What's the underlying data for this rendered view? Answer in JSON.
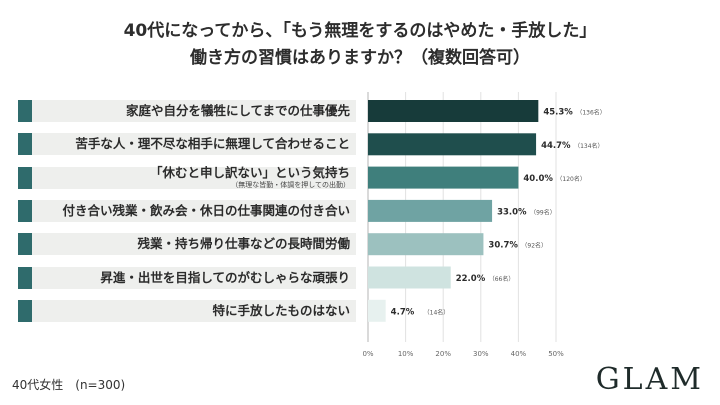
{
  "title_lines": [
    "40代になってから、「もう無理をするのはやめた・手放した」",
    "働き方の習慣はありますか？（複数回答可）"
  ],
  "footer": "40代女性　(n=300)",
  "logo": "GLAM",
  "colors": {
    "marker": "#2f6b6c",
    "label_bg": "#eeefed",
    "bars": [
      "#173b3a",
      "#1f4e4d",
      "#3f7f7c",
      "#6fa3a3",
      "#9cc1bf",
      "#cfe3e0",
      "#e7f1ef"
    ]
  },
  "chart_data": {
    "type": "bar",
    "orientation": "horizontal",
    "categories": [
      "家庭や自分を犠牲にしてまでの仕事優先",
      "苦手な人・理不尽な相手に無理して合わせること",
      "「休むと申し訳ない」という気持ち",
      "付き合い残業・飲み会・休日の仕事関連の付き合い",
      "残業・持ち帰り仕事などの長時間労働",
      "昇進・出世を目指してのがむしゃらな頑張り",
      "特に手放したものはない"
    ],
    "category_notes": [
      "",
      "",
      "（無理な皆勤・体調を押しての出勤）",
      "",
      "",
      "",
      ""
    ],
    "values": [
      45.3,
      44.7,
      40.0,
      33.0,
      30.7,
      22.0,
      4.7
    ],
    "value_labels": [
      "45.3%",
      "44.7%",
      "40.0%",
      "33.0%",
      "30.7%",
      "22.0%",
      "4.7%"
    ],
    "counts": [
      "（136名）",
      "（134名）",
      "（120名）",
      "（99名）",
      "（92名）",
      "（66名）",
      "（14名）"
    ],
    "xlim": [
      0,
      50
    ],
    "xticks": [
      "0%",
      "10%",
      "20%",
      "30%",
      "40%",
      "50%"
    ],
    "grid": true
  }
}
